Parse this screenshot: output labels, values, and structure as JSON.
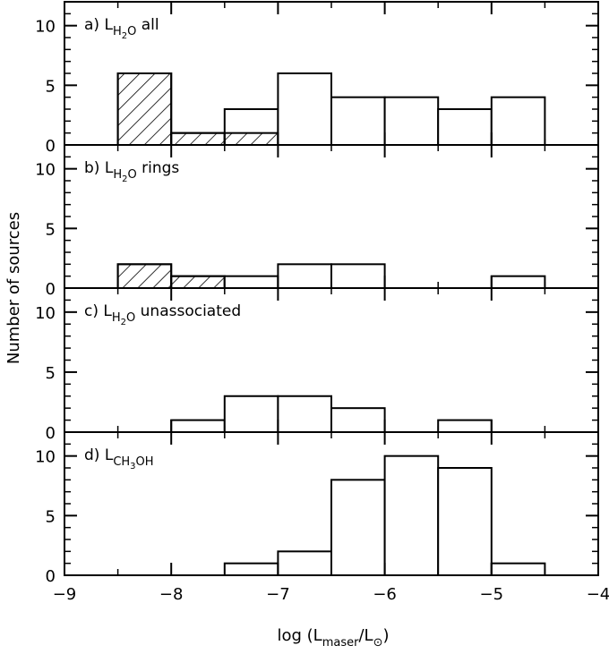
{
  "chart_data": {
    "type": "bar",
    "layout": "stacked-panels-shared-x",
    "xlabel": {
      "prefix": "log (L",
      "sub1": "maser",
      "mid": "/L",
      "sub2": "⊙",
      "suffix": ")"
    },
    "ylabel": "Number of sources",
    "xlim": [
      -9,
      -4
    ],
    "xticks": [
      -9,
      -8,
      -7,
      -6,
      -5,
      -4
    ],
    "xtick_labels": [
      "−9",
      "−8",
      "−7",
      "−6",
      "−5",
      "−4"
    ],
    "bin_width": 0.5,
    "hatch_style": "diagonal-lines",
    "panels": [
      {
        "label": {
          "prefix": "a)  L",
          "sub": "H",
          "subsub": "2",
          "subend": "O",
          "suffix": " all"
        },
        "ylim": [
          0,
          12
        ],
        "yticks": [
          0,
          5,
          10
        ],
        "ytick_labels": [
          "0",
          "5",
          "10"
        ],
        "bins": [
          {
            "x0": -8.5,
            "x1": -8.0,
            "value": 6,
            "hatched": 6
          },
          {
            "x0": -8.0,
            "x1": -7.5,
            "value": 1,
            "hatched": 1
          },
          {
            "x0": -7.5,
            "x1": -7.0,
            "value": 3,
            "hatched": 1
          },
          {
            "x0": -7.0,
            "x1": -6.5,
            "value": 6,
            "hatched": 0
          },
          {
            "x0": -6.5,
            "x1": -6.0,
            "value": 4,
            "hatched": 0
          },
          {
            "x0": -6.0,
            "x1": -5.5,
            "value": 4,
            "hatched": 0
          },
          {
            "x0": -5.5,
            "x1": -5.0,
            "value": 3,
            "hatched": 0
          },
          {
            "x0": -5.0,
            "x1": -4.5,
            "value": 4,
            "hatched": 0
          }
        ]
      },
      {
        "label": {
          "prefix": "b)  L",
          "sub": "H",
          "subsub": "2",
          "subend": "O",
          "suffix": " rings"
        },
        "ylim": [
          0,
          12
        ],
        "yticks": [
          0,
          5,
          10
        ],
        "ytick_labels": [
          "0",
          "5",
          "10"
        ],
        "bins": [
          {
            "x0": -8.5,
            "x1": -8.0,
            "value": 2,
            "hatched": 2
          },
          {
            "x0": -8.0,
            "x1": -7.5,
            "value": 1,
            "hatched": 1
          },
          {
            "x0": -7.5,
            "x1": -7.0,
            "value": 1,
            "hatched": 0
          },
          {
            "x0": -7.0,
            "x1": -6.5,
            "value": 2,
            "hatched": 0
          },
          {
            "x0": -6.5,
            "x1": -6.0,
            "value": 2,
            "hatched": 0
          },
          {
            "x0": -5.0,
            "x1": -4.5,
            "value": 1,
            "hatched": 0
          }
        ]
      },
      {
        "label": {
          "prefix": "c)  L",
          "sub": "H",
          "subsub": "2",
          "subend": "O",
          "suffix": " unassociated"
        },
        "ylim": [
          0,
          12
        ],
        "yticks": [
          0,
          5,
          10
        ],
        "ytick_labels": [
          "0",
          "5",
          "10"
        ],
        "bins": [
          {
            "x0": -8.0,
            "x1": -7.5,
            "value": 1,
            "hatched": 0
          },
          {
            "x0": -7.5,
            "x1": -7.0,
            "value": 3,
            "hatched": 0
          },
          {
            "x0": -7.0,
            "x1": -6.5,
            "value": 3,
            "hatched": 0
          },
          {
            "x0": -6.5,
            "x1": -6.0,
            "value": 2,
            "hatched": 0
          },
          {
            "x0": -5.5,
            "x1": -5.0,
            "value": 1,
            "hatched": 0
          }
        ]
      },
      {
        "label": {
          "prefix": "d)    L",
          "sub": "CH",
          "subsub": "3",
          "subend": "OH",
          "suffix": ""
        },
        "ylim": [
          0,
          12
        ],
        "yticks": [
          0,
          5,
          10
        ],
        "ytick_labels": [
          "0",
          "5",
          "10"
        ],
        "bins": [
          {
            "x0": -7.5,
            "x1": -7.0,
            "value": 1,
            "hatched": 0
          },
          {
            "x0": -7.0,
            "x1": -6.5,
            "value": 2,
            "hatched": 0
          },
          {
            "x0": -6.5,
            "x1": -6.0,
            "value": 8,
            "hatched": 0
          },
          {
            "x0": -6.0,
            "x1": -5.5,
            "value": 10,
            "hatched": 0
          },
          {
            "x0": -5.5,
            "x1": -5.0,
            "value": 9,
            "hatched": 0
          },
          {
            "x0": -5.0,
            "x1": -4.5,
            "value": 1,
            "hatched": 0
          }
        ]
      }
    ]
  }
}
